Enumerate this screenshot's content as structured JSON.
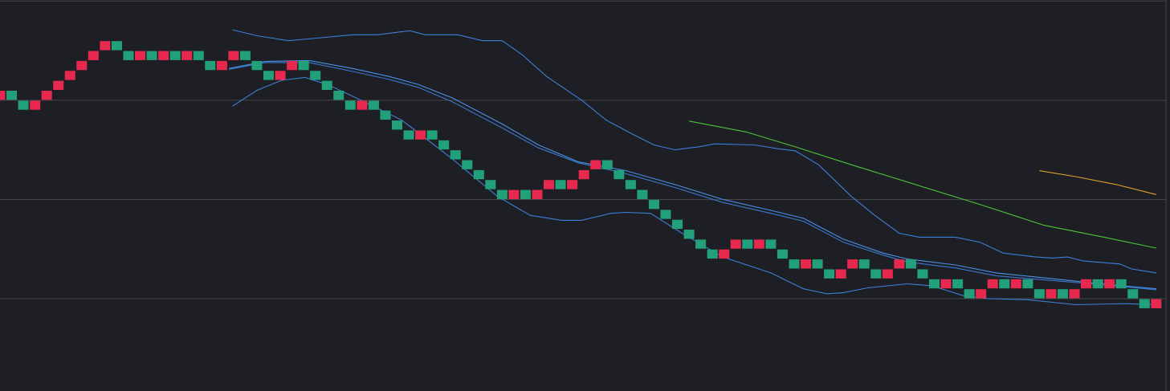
{
  "chart_data": {
    "type": "renko",
    "ylim": [
      -9.3,
      30.1
    ],
    "yticks": [
      0,
      10,
      20,
      30
    ],
    "grid": true,
    "xlim": [
      0,
      99.7
    ],
    "values": [
      20.5,
      20.5,
      19.5,
      19.5,
      20.5,
      21.5,
      22.5,
      23.5,
      24.5,
      25.5,
      25.5,
      24.5,
      24.5,
      24.5,
      24.5,
      24.5,
      24.5,
      24.5,
      23.5,
      23.5,
      24.5,
      24.5,
      23.5,
      22.5,
      22.5,
      23.5,
      23.5,
      22.5,
      21.5,
      20.5,
      19.5,
      19.5,
      19.5,
      18.5,
      17.5,
      16.5,
      16.5,
      16.5,
      15.5,
      14.5,
      13.5,
      12.5,
      11.5,
      10.5,
      10.5,
      10.5,
      10.5,
      11.5,
      11.5,
      11.5,
      12.5,
      13.5,
      13.5,
      12.5,
      11.5,
      10.5,
      9.5,
      8.5,
      7.5,
      6.5,
      5.5,
      4.5,
      4.5,
      5.5,
      5.5,
      5.5,
      5.5,
      4.5,
      3.5,
      3.5,
      3.5,
      2.5,
      2.5,
      3.5,
      3.5,
      2.5,
      2.5,
      3.5,
      3.5,
      2.5,
      1.5,
      1.5,
      1.5,
      0.5,
      0.5,
      1.5,
      1.5,
      1.5,
      1.5,
      0.5,
      0.5,
      0.5,
      0.5,
      1.5,
      1.5,
      1.5,
      1.5,
      0.5,
      -0.5,
      -0.5
    ],
    "colors": [
      "#e8294f",
      "#22a07a",
      "#22a07a",
      "#e8294f",
      "#e8294f",
      "#e8294f",
      "#e8294f",
      "#e8294f",
      "#e8294f",
      "#e8294f",
      "#22a07a",
      "#22a07a",
      "#e8294f",
      "#22a07a",
      "#e8294f",
      "#22a07a",
      "#e8294f",
      "#22a07a",
      "#22a07a",
      "#e8294f",
      "#e8294f",
      "#22a07a",
      "#22a07a",
      "#22a07a",
      "#e8294f",
      "#e8294f",
      "#22a07a",
      "#22a07a",
      "#22a07a",
      "#22a07a",
      "#22a07a",
      "#e8294f",
      "#22a07a",
      "#22a07a",
      "#22a07a",
      "#22a07a",
      "#e8294f",
      "#22a07a",
      "#22a07a",
      "#22a07a",
      "#22a07a",
      "#22a07a",
      "#22a07a",
      "#22a07a",
      "#e8294f",
      "#22a07a",
      "#e8294f",
      "#e8294f",
      "#22a07a",
      "#e8294f",
      "#e8294f",
      "#e8294f",
      "#22a07a",
      "#22a07a",
      "#22a07a",
      "#22a07a",
      "#22a07a",
      "#22a07a",
      "#22a07a",
      "#22a07a",
      "#22a07a",
      "#22a07a",
      "#e8294f",
      "#e8294f",
      "#22a07a",
      "#e8294f",
      "#22a07a",
      "#22a07a",
      "#22a07a",
      "#e8294f",
      "#22a07a",
      "#22a07a",
      "#e8294f",
      "#e8294f",
      "#22a07a",
      "#22a07a",
      "#e8294f",
      "#e8294f",
      "#22a07a",
      "#22a07a",
      "#22a07a",
      "#e8294f",
      "#22a07a",
      "#22a07a",
      "#e8294f",
      "#e8294f",
      "#22a07a",
      "#e8294f",
      "#22a07a",
      "#22a07a",
      "#e8294f",
      "#22a07a",
      "#e8294f",
      "#e8294f",
      "#22a07a",
      "#e8294f",
      "#22a07a",
      "#22a07a",
      "#22a07a",
      "#e8294f"
    ],
    "lines": [
      {
        "color": "#3d7fd9",
        "x": [
          19.9,
          22,
          24.7,
          27.5,
          30.2,
          32.3,
          35.1,
          36.4,
          39.2,
          41.3,
          43,
          44.7,
          46.8,
          49.8,
          51.9,
          54.3,
          56,
          57.8,
          59.8,
          61.2,
          64.6,
          66.7,
          68.1,
          70.1,
          72.9,
          74.9,
          77,
          78.7,
          81.8,
          83.9,
          85.9,
          88.7,
          90.1,
          91.4,
          92.8,
          95.9,
          96.9,
          99
        ],
        "values": [
          27.1,
          26.5,
          26,
          26.3,
          26.6,
          26.6,
          27,
          26.6,
          26.6,
          26,
          26,
          24.6,
          22.4,
          20,
          18,
          16.5,
          15.5,
          15,
          15.3,
          15.6,
          15.5,
          15.1,
          14.9,
          13.5,
          10.3,
          8.4,
          6.6,
          6.2,
          6.2,
          5.7,
          4.6,
          4.2,
          4.1,
          4.2,
          3.8,
          3.5,
          3,
          2.6
        ]
      },
      {
        "color": "#4a8fe8",
        "x": [
          19.6,
          22.7,
          26.5,
          30.2,
          33.3,
          35.8,
          38.8,
          43,
          46.1,
          49.5,
          53.6,
          57.8,
          61.9,
          66,
          68.8,
          72.2,
          75.6,
          77.7,
          81.8,
          85.3,
          89.4,
          93.5,
          99
        ],
        "values": [
          23.2,
          23.9,
          24,
          23.2,
          22.4,
          21.6,
          20.2,
          17.6,
          15.5,
          13.8,
          12.9,
          11.5,
          10,
          8.9,
          8.1,
          6,
          4.6,
          4,
          3.4,
          2.6,
          2.1,
          1.6,
          1
        ]
      },
      {
        "color": "#3a78d0",
        "x": [
          19.6,
          22.7,
          26.5,
          30.2,
          33.3,
          35.8,
          38.8,
          43,
          46.1,
          49.5,
          53.6,
          57.8,
          61.9,
          66,
          68.8,
          72.2,
          75.6,
          77.7,
          81.8,
          85.3,
          89.4,
          93.5,
          99
        ],
        "values": [
          23.1,
          23.8,
          23.8,
          22.9,
          22.1,
          21.3,
          19.8,
          17.2,
          15.2,
          13.7,
          12.6,
          11.2,
          9.7,
          8.6,
          7.8,
          5.7,
          4.4,
          3.7,
          3.1,
          2.3,
          1.9,
          1.5,
          0.9
        ]
      },
      {
        "color": "#3d7fd9",
        "x": [
          19.9,
          22,
          24.1,
          26.1,
          28.2,
          30.9,
          34.4,
          38.5,
          42.6,
          45.4,
          48.1,
          49.8,
          52.3,
          53.6,
          55.7,
          58.4,
          61.9,
          66,
          68.8,
          70.8,
          72.2,
          74.3,
          77.7,
          79.8,
          82.5,
          84.6,
          88,
          92.1,
          96.3,
          99
        ],
        "values": [
          19.4,
          21,
          22,
          22.3,
          21.5,
          20,
          18,
          14.3,
          10.3,
          8.4,
          7.9,
          7.9,
          8.6,
          8.7,
          8.6,
          6.6,
          4.2,
          2.6,
          1,
          0.5,
          0.6,
          1.1,
          1.5,
          1.3,
          0.3,
          0,
          -0.1,
          -0.6,
          -0.5,
          -0.6
        ]
      },
      {
        "color": "#4cc43a",
        "x": [
          59,
          63.9,
          68.1,
          72.9,
          78.4,
          83.9,
          89.4,
          94.9,
          99
        ],
        "values": [
          17.9,
          16.8,
          15.3,
          13.5,
          11.5,
          9.5,
          7.4,
          6.1,
          5.1
        ]
      },
      {
        "color": "#e0a030",
        "x": [
          89,
          92.1,
          95.6,
          99
        ],
        "values": [
          12.9,
          12.3,
          11.5,
          10.5
        ]
      }
    ]
  }
}
